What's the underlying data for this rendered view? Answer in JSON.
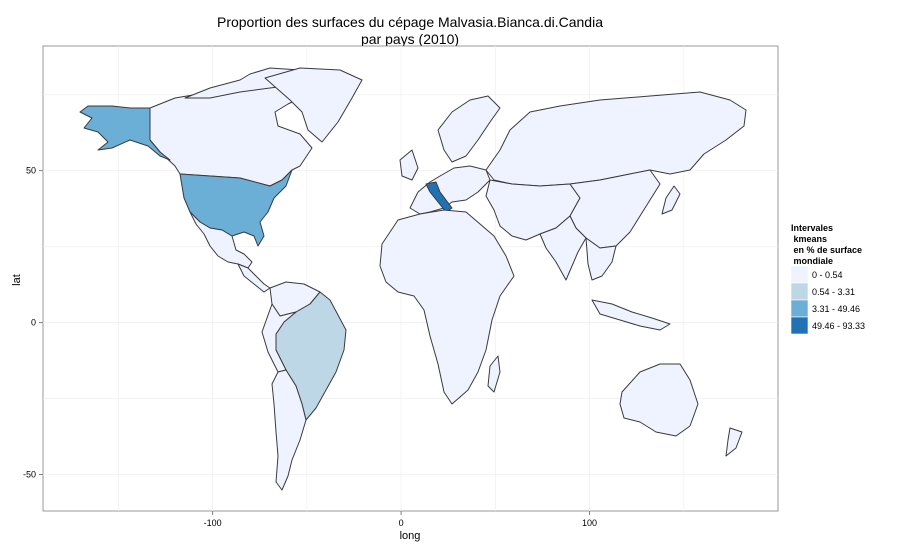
{
  "title_line1": "Proportion des surfaces du cépage Malvasia.Bianca.di.Candia",
  "title_line2": "par pays (2010)",
  "axes": {
    "xlabel": "long",
    "ylabel": "lat",
    "x_ticks": [
      -100,
      0,
      100
    ],
    "y_ticks": [
      50,
      0,
      -50
    ],
    "x_tick_labels": [
      "-100",
      "0",
      "100"
    ],
    "y_tick_labels": [
      "50",
      "0",
      "-50"
    ],
    "xlim": [
      -190,
      200
    ],
    "ylim": [
      -62,
      91
    ]
  },
  "legend": {
    "title_lines": [
      "Intervales",
      " kmeans",
      " en % de surface",
      " mondiale"
    ],
    "items": [
      {
        "label": "0 - 0.54",
        "color": "#eff3ff"
      },
      {
        "label": "0.54 - 3.31",
        "color": "#bdd7e7"
      },
      {
        "label": "3.31 - 49.46",
        "color": "#6baed6"
      },
      {
        "label": "49.46 - 93.33",
        "color": "#2171b5"
      }
    ]
  },
  "chart_data": {
    "type": "map",
    "projection": "equirectangular (long/lat)",
    "grid": "on",
    "legend_position": "right",
    "regions": [
      {
        "name": "USA",
        "class": "3.31 - 49.46"
      },
      {
        "name": "Alaska",
        "class": "3.31 - 49.46"
      },
      {
        "name": "Brazil",
        "class": "0.54 - 3.31"
      },
      {
        "name": "Italy",
        "class": "49.46 - 93.33"
      },
      {
        "name": "all other countries",
        "class": "0 - 0.54"
      }
    ]
  }
}
